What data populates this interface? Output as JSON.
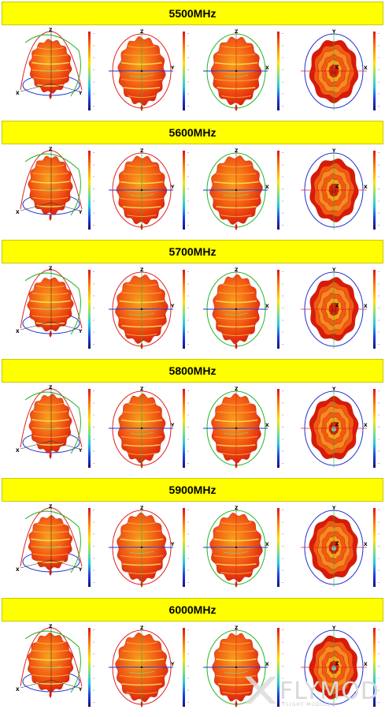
{
  "bands": [
    {
      "title": "5500MHz"
    },
    {
      "title": "5600MHz"
    },
    {
      "title": "5700MHz"
    },
    {
      "title": "5800MHz"
    },
    {
      "title": "5900MHz"
    },
    {
      "title": "6000MHz"
    }
  ],
  "view_axis_labels": {
    "iso": {
      "top": "Z",
      "left": "X",
      "right": "Y"
    },
    "front": {
      "top": "Z",
      "right": "Y"
    },
    "side": {
      "top": "Z",
      "right": "X"
    },
    "top_view": {
      "top": "Y",
      "right": "X",
      "center": "Z"
    }
  },
  "colors": {
    "header_bg": "#ffff00",
    "pattern_hot": "#d81a0a",
    "pattern_mid": "#f25a14",
    "pattern_warm": "#f7a21c",
    "pattern_light": "#fde65a",
    "circle_red": "#e02020",
    "circle_green": "#26b526",
    "circle_blue": "#2030d0"
  },
  "watermark": {
    "brand": "FLYMOD",
    "tagline": "FLIGHT MODULES"
  }
}
